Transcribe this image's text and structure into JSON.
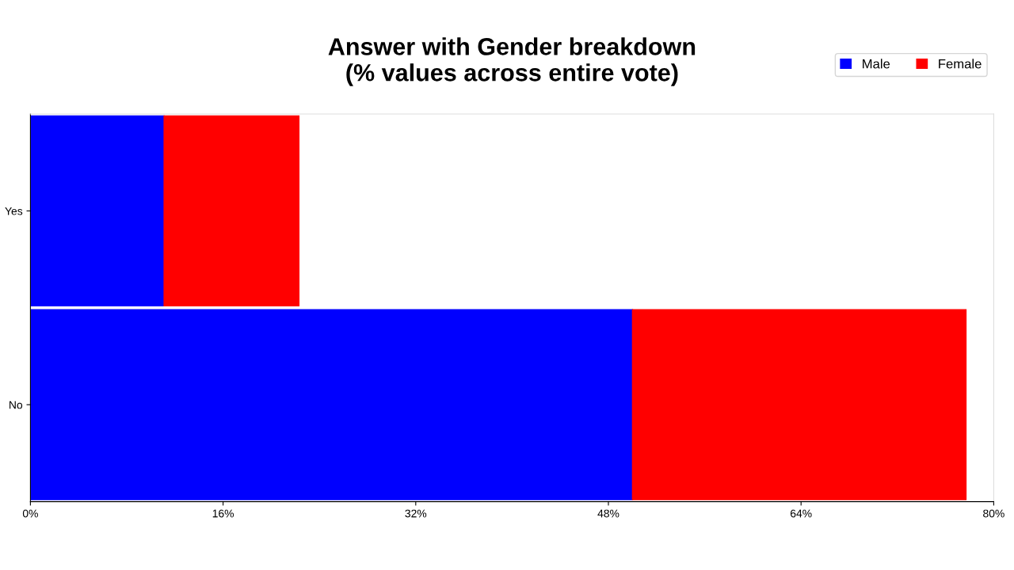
{
  "chart_data": {
    "type": "bar",
    "orientation": "horizontal",
    "stacked": true,
    "title": "Answer with Gender breakdown\n(% values across entire vote)",
    "categories": [
      "Yes",
      "No"
    ],
    "series": [
      {
        "name": "Male",
        "color": "#0000ff",
        "values": [
          11.1,
          50.0
        ]
      },
      {
        "name": "Female",
        "color": "#ff0000",
        "values": [
          11.2,
          27.7
        ]
      }
    ],
    "xlim": [
      0,
      80
    ],
    "xticks": [
      {
        "value": 0,
        "label": "0%"
      },
      {
        "value": 16,
        "label": "16%"
      },
      {
        "value": 32,
        "label": "32%"
      },
      {
        "value": 48,
        "label": "48%"
      },
      {
        "value": 64,
        "label": "64%"
      },
      {
        "value": 80,
        "label": "80%"
      }
    ],
    "grid": false,
    "legend": "top right"
  }
}
